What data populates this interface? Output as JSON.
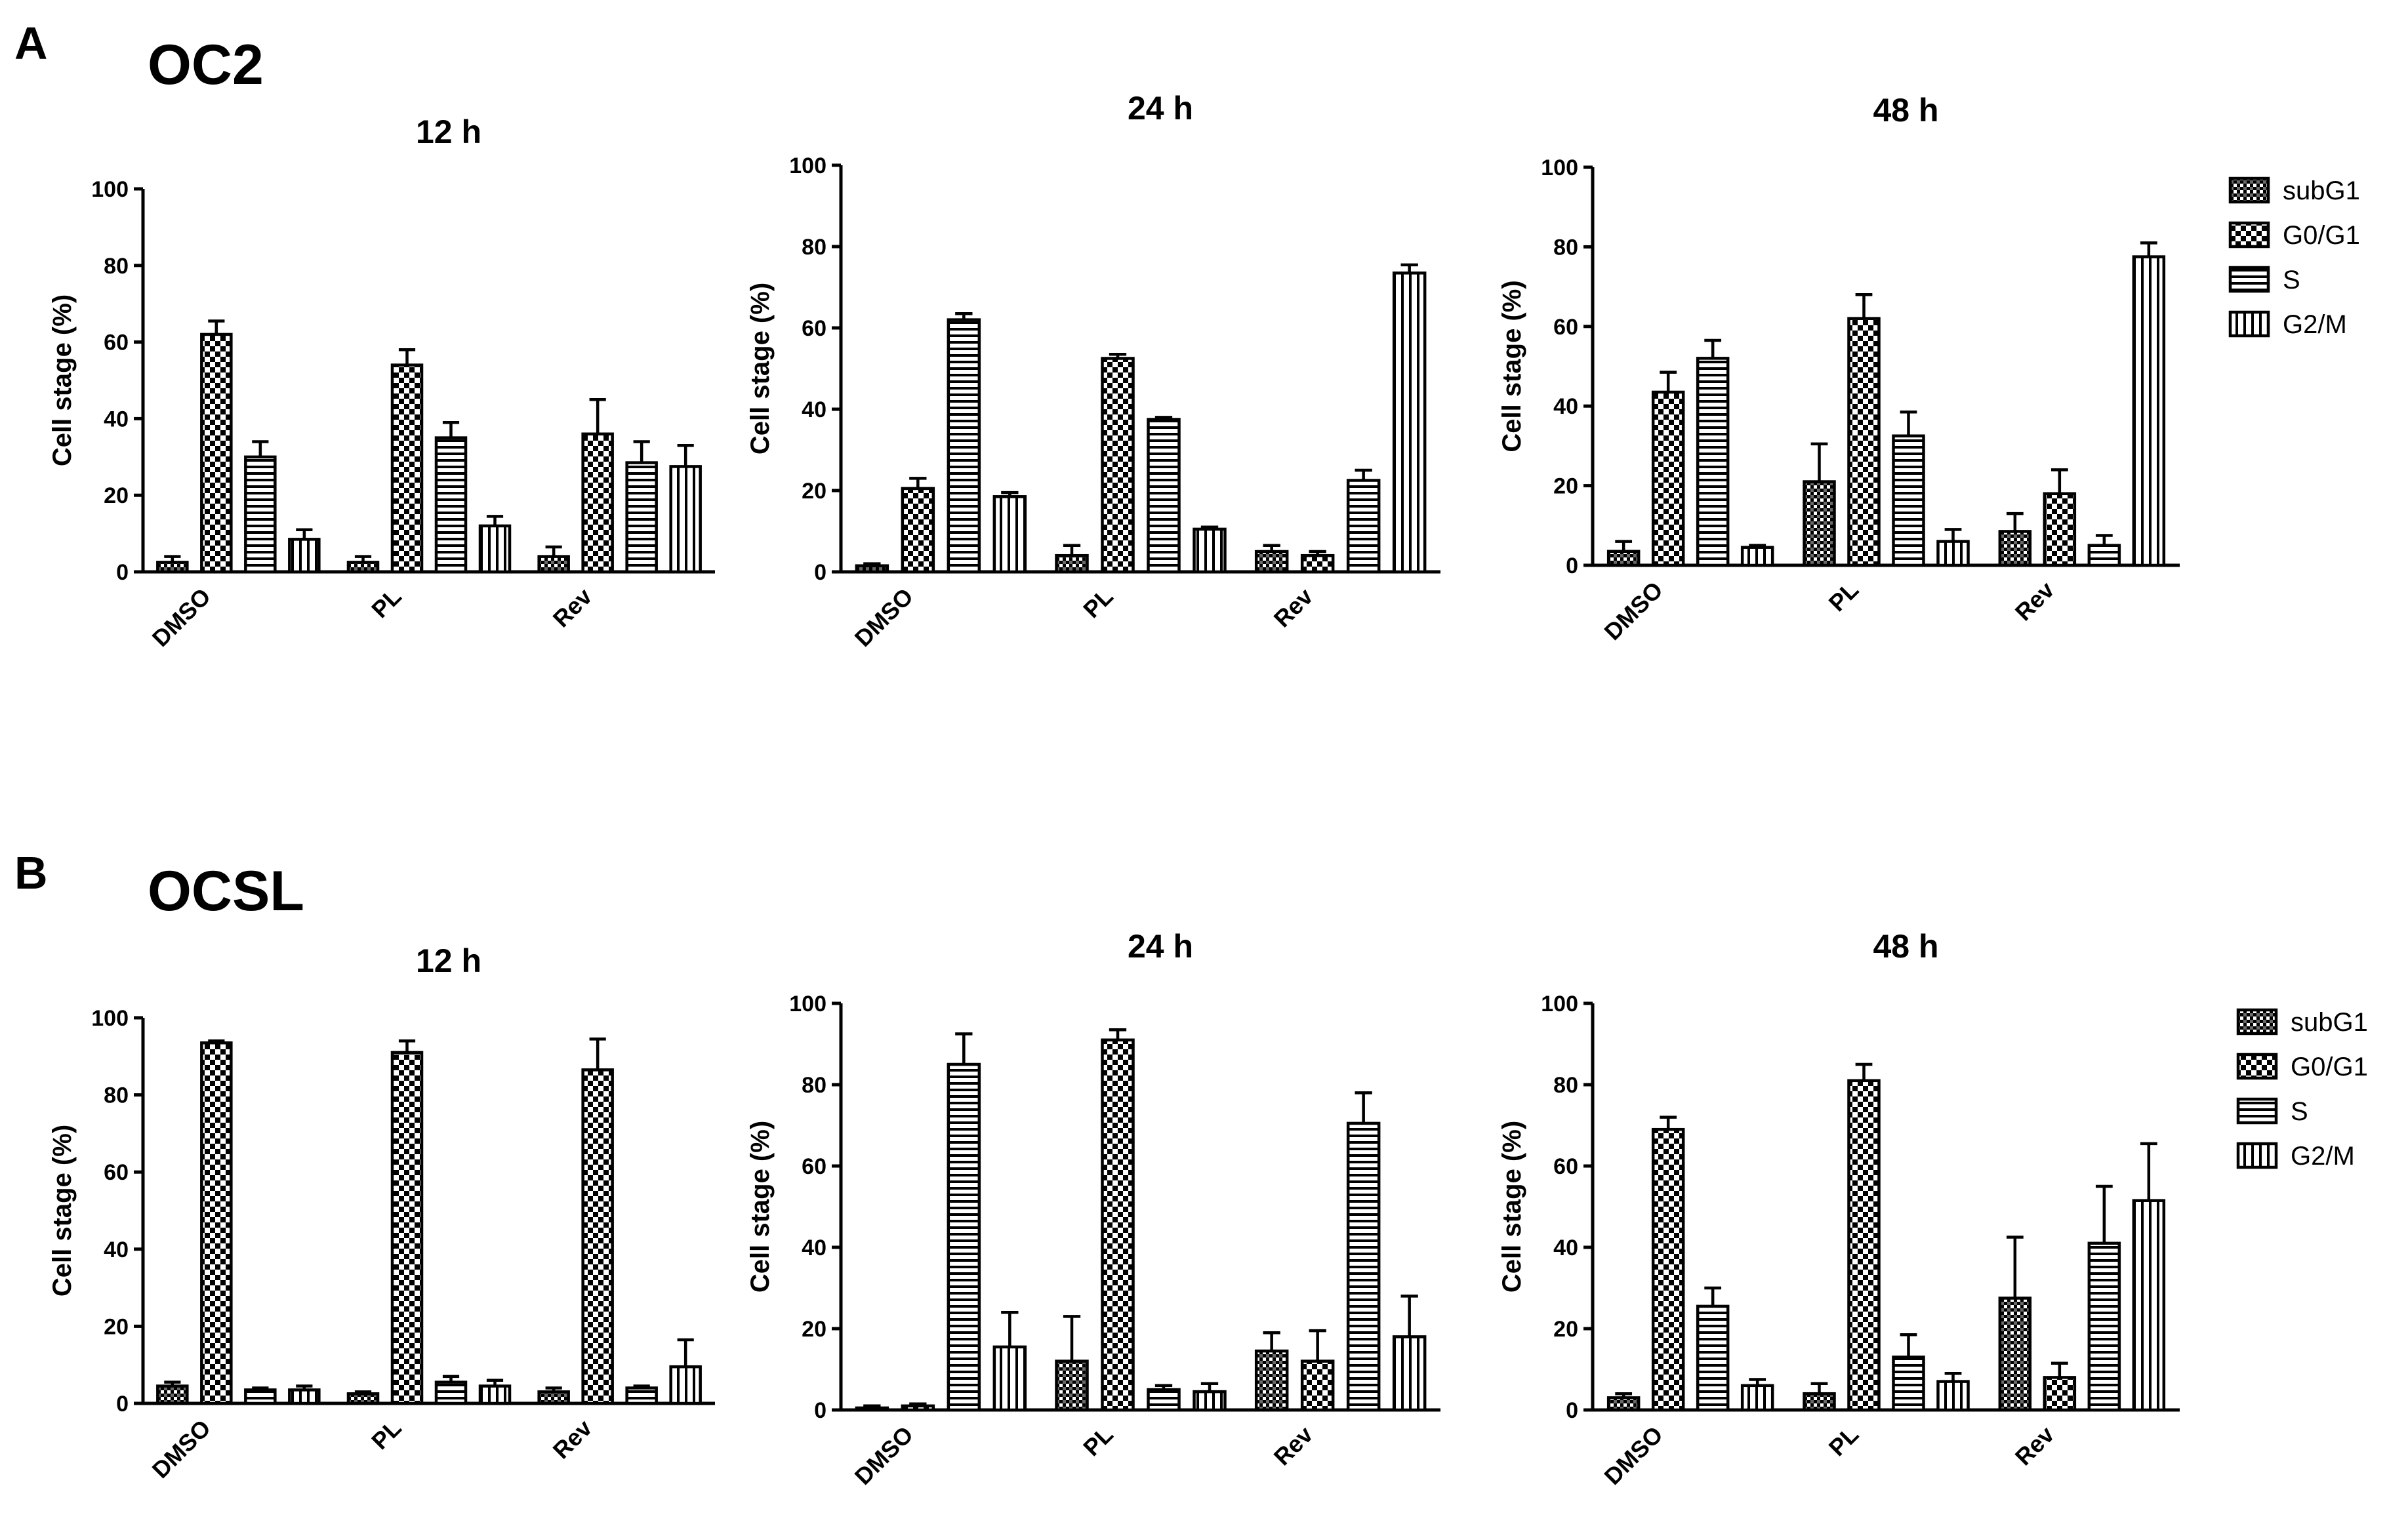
{
  "panels": [
    {
      "letter": "A",
      "title": "OC2"
    },
    {
      "letter": "B",
      "title": "OCSL"
    }
  ],
  "legend": {
    "entries": [
      "subG1",
      "G0/G1",
      "S",
      "G2/M"
    ],
    "patterns": [
      "dots",
      "checker",
      "hstripes",
      "vstripes"
    ]
  },
  "colors": {
    "ink": "#000000",
    "background": "#ffffff"
  },
  "chart_data": [
    {
      "type": "bar",
      "panel": "OC2",
      "title": "12 h",
      "categories": [
        "DMSO",
        "PL",
        "Rev"
      ],
      "ylabel": "Cell stage (%)",
      "xlabel": "",
      "ylim": [
        0,
        100
      ],
      "yticks": [
        0,
        20,
        40,
        60,
        80,
        100
      ],
      "series": [
        {
          "name": "subG1",
          "values": [
            2.5,
            2.5,
            4
          ],
          "errors": [
            1.5,
            1.5,
            2.5
          ]
        },
        {
          "name": "G0/G1",
          "values": [
            62,
            54,
            36
          ],
          "errors": [
            3.5,
            4,
            9
          ]
        },
        {
          "name": "S",
          "values": [
            30,
            35,
            28.5
          ],
          "errors": [
            4,
            4,
            5.5
          ]
        },
        {
          "name": "G2/M",
          "values": [
            8.5,
            12,
            27.5
          ],
          "errors": [
            2.5,
            2.5,
            5.5
          ]
        }
      ]
    },
    {
      "type": "bar",
      "panel": "OC2",
      "title": "24 h",
      "categories": [
        "DMSO",
        "PL",
        "Rev"
      ],
      "ylabel": "Cell stage (%)",
      "xlabel": "",
      "ylim": [
        0,
        100
      ],
      "yticks": [
        0,
        20,
        40,
        60,
        80,
        100
      ],
      "series": [
        {
          "name": "subG1",
          "values": [
            1.5,
            4,
            5
          ],
          "errors": [
            0.5,
            2.5,
            1.5
          ]
        },
        {
          "name": "G0/G1",
          "values": [
            20.5,
            52.5,
            4
          ],
          "errors": [
            2.5,
            1,
            1
          ]
        },
        {
          "name": "S",
          "values": [
            62,
            37.5,
            22.5
          ],
          "errors": [
            1.5,
            0.5,
            2.5
          ]
        },
        {
          "name": "G2/M",
          "values": [
            18.5,
            10.5,
            73.5
          ],
          "errors": [
            1,
            0.5,
            2
          ]
        }
      ]
    },
    {
      "type": "bar",
      "panel": "OC2",
      "title": "48 h",
      "categories": [
        "DMSO",
        "PL",
        "Rev"
      ],
      "ylabel": "Cell stage (%)",
      "xlabel": "",
      "ylim": [
        0,
        100
      ],
      "yticks": [
        0,
        20,
        40,
        60,
        80,
        100
      ],
      "series": [
        {
          "name": "subG1",
          "values": [
            3.5,
            21,
            8.5
          ],
          "errors": [
            2.5,
            9.5,
            4.5
          ]
        },
        {
          "name": "G0/G1",
          "values": [
            43.5,
            62,
            18
          ],
          "errors": [
            5,
            6,
            6
          ]
        },
        {
          "name": "S",
          "values": [
            52,
            32.5,
            5
          ],
          "errors": [
            4.5,
            6,
            2.5
          ]
        },
        {
          "name": "G2/M",
          "values": [
            4.5,
            6,
            77.5
          ],
          "errors": [
            0.5,
            3,
            3.5
          ]
        }
      ]
    },
    {
      "type": "bar",
      "panel": "OCSL",
      "title": "12 h",
      "categories": [
        "DMSO",
        "PL",
        "Rev"
      ],
      "ylabel": "Cell stage (%)",
      "xlabel": "",
      "ylim": [
        0,
        100
      ],
      "yticks": [
        0,
        20,
        40,
        60,
        80,
        100
      ],
      "series": [
        {
          "name": "subG1",
          "values": [
            4.5,
            2.5,
            3
          ],
          "errors": [
            1,
            0.5,
            1
          ]
        },
        {
          "name": "G0/G1",
          "values": [
            93.5,
            91,
            86.5
          ],
          "errors": [
            0.5,
            3,
            8
          ]
        },
        {
          "name": "S",
          "values": [
            3.5,
            5.5,
            4
          ],
          "errors": [
            0.5,
            1.5,
            0.5
          ]
        },
        {
          "name": "G2/M",
          "values": [
            3.5,
            4.5,
            9.5
          ],
          "errors": [
            1,
            1.5,
            7
          ]
        }
      ]
    },
    {
      "type": "bar",
      "panel": "OCSL",
      "title": "24 h",
      "categories": [
        "DMSO",
        "PL",
        "Rev"
      ],
      "ylabel": "Cell stage (%)",
      "xlabel": "",
      "ylim": [
        0,
        100
      ],
      "yticks": [
        0,
        20,
        40,
        60,
        80,
        100
      ],
      "series": [
        {
          "name": "subG1",
          "values": [
            0.5,
            12,
            14.5
          ],
          "errors": [
            0.5,
            11,
            4.5
          ]
        },
        {
          "name": "G0/G1",
          "values": [
            1,
            91,
            12
          ],
          "errors": [
            0.5,
            2.5,
            7.5
          ]
        },
        {
          "name": "S",
          "values": [
            85,
            5,
            70.5
          ],
          "errors": [
            7.5,
            1,
            7.5
          ]
        },
        {
          "name": "G2/M",
          "values": [
            15.5,
            4.5,
            18
          ],
          "errors": [
            8.5,
            2,
            10
          ]
        }
      ]
    },
    {
      "type": "bar",
      "panel": "OCSL",
      "title": "48 h",
      "categories": [
        "DMSO",
        "PL",
        "Rev"
      ],
      "ylabel": "Cell stage (%)",
      "xlabel": "",
      "ylim": [
        0,
        100
      ],
      "yticks": [
        0,
        20,
        40,
        60,
        80,
        100
      ],
      "series": [
        {
          "name": "subG1",
          "values": [
            3,
            4,
            27.5
          ],
          "errors": [
            1,
            2.5,
            15
          ]
        },
        {
          "name": "G0/G1",
          "values": [
            69,
            81,
            8
          ],
          "errors": [
            3,
            4,
            3.5
          ]
        },
        {
          "name": "S",
          "values": [
            25.5,
            13,
            41
          ],
          "errors": [
            4.5,
            5.5,
            14
          ]
        },
        {
          "name": "G2/M",
          "values": [
            6,
            7,
            51.5
          ],
          "errors": [
            1.5,
            2,
            14
          ]
        }
      ]
    }
  ]
}
